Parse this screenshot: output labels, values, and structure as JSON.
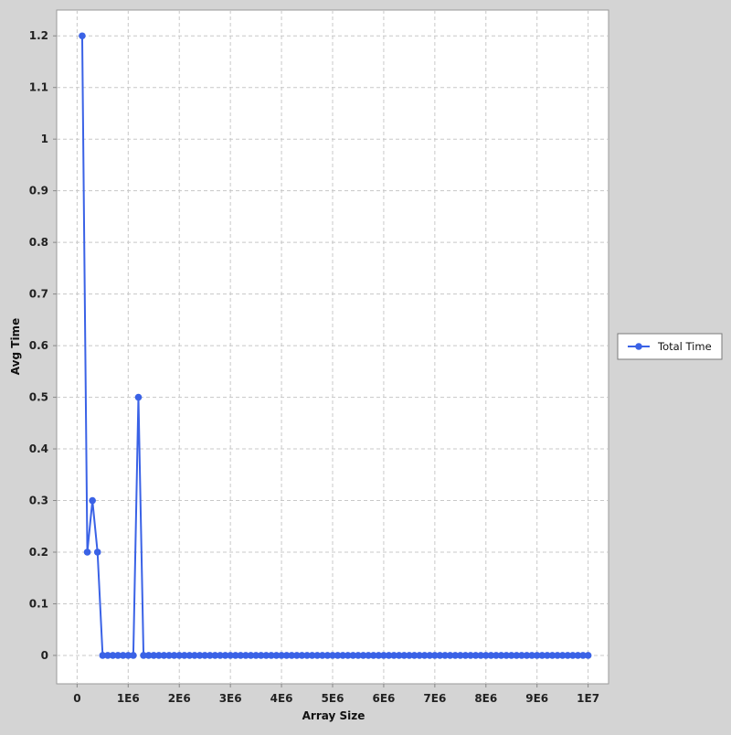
{
  "chart_data": {
    "type": "line",
    "title": "",
    "xlabel": "Array Size",
    "ylabel": "Avg Time",
    "xlim": [
      -400000,
      10400000
    ],
    "ylim": [
      -0.055,
      1.25
    ],
    "x_ticks": [
      {
        "value": 0,
        "label": "0"
      },
      {
        "value": 1000000,
        "label": "1E6"
      },
      {
        "value": 2000000,
        "label": "2E6"
      },
      {
        "value": 3000000,
        "label": "3E6"
      },
      {
        "value": 4000000,
        "label": "4E6"
      },
      {
        "value": 5000000,
        "label": "5E6"
      },
      {
        "value": 6000000,
        "label": "6E6"
      },
      {
        "value": 7000000,
        "label": "7E6"
      },
      {
        "value": 8000000,
        "label": "8E6"
      },
      {
        "value": 9000000,
        "label": "9E6"
      },
      {
        "value": 10000000,
        "label": "1E7"
      }
    ],
    "y_ticks": [
      {
        "value": 0,
        "label": "0"
      },
      {
        "value": 0.1,
        "label": "0.1"
      },
      {
        "value": 0.2,
        "label": "0.2"
      },
      {
        "value": 0.3,
        "label": "0.3"
      },
      {
        "value": 0.4,
        "label": "0.4"
      },
      {
        "value": 0.5,
        "label": "0.5"
      },
      {
        "value": 0.6,
        "label": "0.6"
      },
      {
        "value": 0.7,
        "label": "0.7"
      },
      {
        "value": 0.8,
        "label": "0.8"
      },
      {
        "value": 0.9,
        "label": "0.9"
      },
      {
        "value": 1.0,
        "label": "1"
      },
      {
        "value": 1.1,
        "label": "1.1"
      },
      {
        "value": 1.2,
        "label": "1.2"
      }
    ],
    "grid": true,
    "legend_position": "right",
    "series": [
      {
        "name": "Total Time",
        "color": "#3a62e6",
        "x_start": 100000,
        "x_step": 100000,
        "x_end": 10000000,
        "nonzero_points": [
          {
            "x": 100000,
            "y": 1.2
          },
          {
            "x": 200000,
            "y": 0.2
          },
          {
            "x": 300000,
            "y": 0.3
          },
          {
            "x": 400000,
            "y": 0.2
          },
          {
            "x": 1200000,
            "y": 0.5
          }
        ],
        "default_y": 0
      }
    ]
  }
}
